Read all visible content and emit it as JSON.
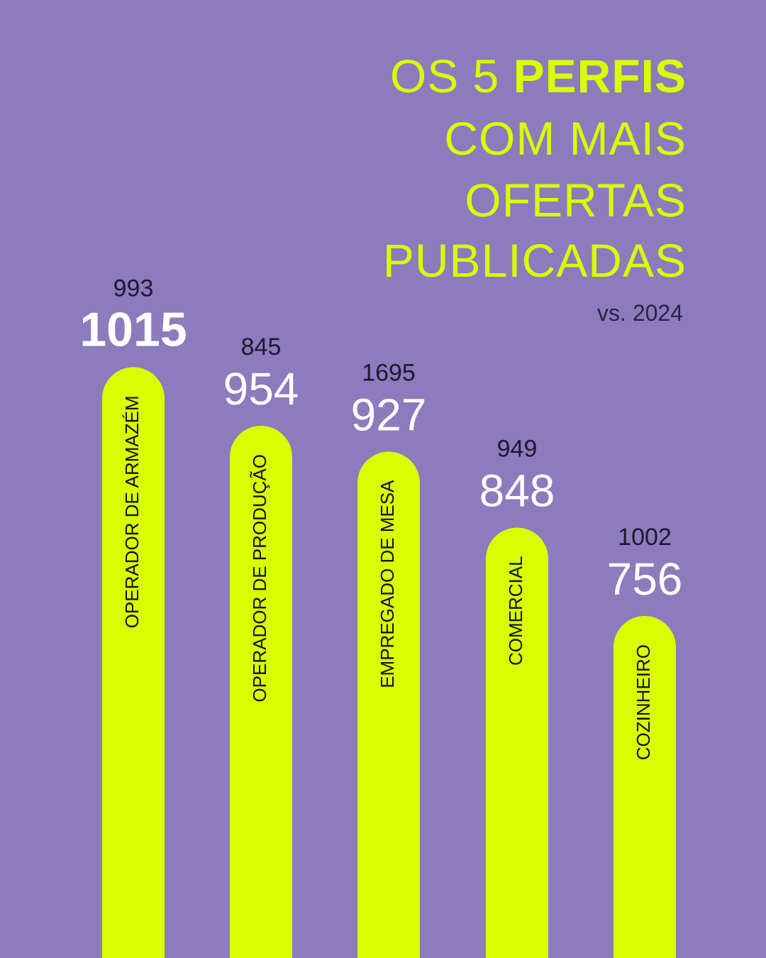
{
  "chart_data": {
    "type": "bar",
    "title_parts": [
      "OS 5",
      "PERFIS",
      "COM MAIS",
      "OFERTAS",
      "PUBLICADAS"
    ],
    "subtitle": "vs. 2024",
    "categories": [
      "OPERADOR DE ARMAZÉM",
      "OPERADOR DE PRODUÇÃO",
      "EMPREGADO DE MESA",
      "COMERCIAL",
      "COZINHEIRO"
    ],
    "values": [
      1015,
      954,
      927,
      848,
      756
    ],
    "comparison_values": [
      993,
      845,
      1695,
      949,
      1002
    ],
    "color": "#d7ff00",
    "background": "#8c7bbd",
    "ylim": [
      400,
      1050
    ]
  }
}
